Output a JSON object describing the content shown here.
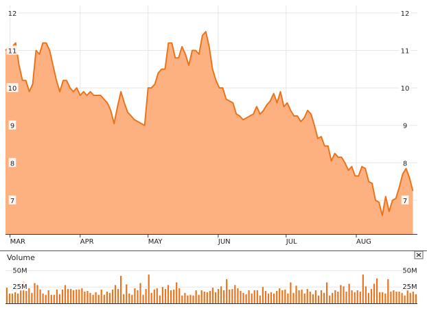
{
  "colors": {
    "area_fill": "#fdb180",
    "line": "#e8741e",
    "volume_bar": "#e8741e",
    "grid": "#e6e6e6",
    "axis": "#333333"
  },
  "volume_panel": {
    "title": "Volume",
    "close_icon": "close-x-icon",
    "tick_labels": [
      "50M",
      "25M"
    ]
  },
  "chart_data": [
    {
      "type": "area",
      "months": [
        {
          "label": "MAR",
          "t": 0
        },
        {
          "label": "APR",
          "t": 31
        },
        {
          "label": "MAY",
          "t": 61
        },
        {
          "label": "JUN",
          "t": 92
        },
        {
          "label": "JUL",
          "t": 122
        },
        {
          "label": "AUG",
          "t": 153
        }
      ],
      "xlim": [
        -2,
        180
      ],
      "ylim": [
        6.1,
        12.2
      ],
      "yticks": [
        7,
        8,
        9,
        10,
        11,
        12
      ],
      "grid": true,
      "series": [
        {
          "points": [
            [
              -2,
              11.0
            ],
            [
              -0.5,
              11.1
            ],
            [
              1,
              11.1
            ],
            [
              2.5,
              11.2
            ],
            [
              4,
              10.6
            ],
            [
              5.5,
              10.2
            ],
            [
              7,
              10.2
            ],
            [
              8.5,
              9.9
            ],
            [
              10,
              10.1
            ],
            [
              11.5,
              11.0
            ],
            [
              13,
              10.9
            ],
            [
              14.5,
              11.2
            ],
            [
              16,
              11.2
            ],
            [
              17.5,
              11.0
            ],
            [
              19,
              10.6
            ],
            [
              20.5,
              10.2
            ],
            [
              22,
              9.9
            ],
            [
              23.5,
              10.2
            ],
            [
              25,
              10.2
            ],
            [
              26.5,
              10.0
            ],
            [
              28,
              9.9
            ],
            [
              29.5,
              10.0
            ],
            [
              31,
              9.8
            ],
            [
              32.5,
              9.9
            ],
            [
              34,
              9.8
            ],
            [
              35.5,
              9.9
            ],
            [
              37,
              9.8
            ],
            [
              38.5,
              9.8
            ],
            [
              40,
              9.8
            ],
            [
              41.5,
              9.7
            ],
            [
              43,
              9.6
            ],
            [
              44.5,
              9.4
            ],
            [
              46,
              9.05
            ],
            [
              47.5,
              9.5
            ],
            [
              49,
              9.9
            ],
            [
              50.5,
              9.6
            ],
            [
              52,
              9.35
            ],
            [
              53.5,
              9.25
            ],
            [
              55,
              9.15
            ],
            [
              56.5,
              9.1
            ],
            [
              58,
              9.05
            ],
            [
              59.5,
              9.0
            ],
            [
              61,
              10.0
            ],
            [
              62.5,
              10.0
            ],
            [
              64,
              10.1
            ],
            [
              65.5,
              10.4
            ],
            [
              67,
              10.5
            ],
            [
              68.5,
              10.5
            ],
            [
              70,
              11.2
            ],
            [
              71.5,
              11.2
            ],
            [
              73,
              10.8
            ],
            [
              74.5,
              10.8
            ],
            [
              76,
              11.1
            ],
            [
              77.5,
              10.9
            ],
            [
              79,
              10.6
            ],
            [
              80.5,
              11.0
            ],
            [
              82,
              11.0
            ],
            [
              83.5,
              10.9
            ],
            [
              85,
              11.4
            ],
            [
              86.5,
              11.5
            ],
            [
              88,
              11.1
            ],
            [
              89.5,
              10.5
            ],
            [
              91,
              10.2
            ],
            [
              92.5,
              10.0
            ],
            [
              94,
              10.0
            ],
            [
              95.5,
              9.7
            ],
            [
              97,
              9.65
            ],
            [
              98.5,
              9.6
            ],
            [
              100,
              9.3
            ],
            [
              101.5,
              9.25
            ],
            [
              103,
              9.15
            ],
            [
              104.5,
              9.2
            ],
            [
              106,
              9.25
            ],
            [
              107.5,
              9.3
            ],
            [
              109,
              9.5
            ],
            [
              110.5,
              9.3
            ],
            [
              112,
              9.4
            ],
            [
              113.5,
              9.55
            ],
            [
              115,
              9.65
            ],
            [
              116.5,
              9.85
            ],
            [
              118,
              9.6
            ],
            [
              119.5,
              9.9
            ],
            [
              121,
              9.5
            ],
            [
              122.5,
              9.6
            ],
            [
              124,
              9.4
            ],
            [
              125.5,
              9.25
            ],
            [
              127,
              9.25
            ],
            [
              128.5,
              9.1
            ],
            [
              130,
              9.2
            ],
            [
              131.5,
              9.4
            ],
            [
              133,
              9.3
            ],
            [
              134.5,
              9.0
            ],
            [
              136,
              8.65
            ],
            [
              137.5,
              8.7
            ],
            [
              139,
              8.45
            ],
            [
              140.5,
              8.45
            ],
            [
              142,
              8.05
            ],
            [
              143.5,
              8.25
            ],
            [
              145,
              8.15
            ],
            [
              146.5,
              8.15
            ],
            [
              148,
              8.0
            ],
            [
              149.5,
              7.8
            ],
            [
              151,
              7.9
            ],
            [
              152.5,
              7.65
            ],
            [
              154,
              7.65
            ],
            [
              155.5,
              7.9
            ],
            [
              157,
              7.85
            ],
            [
              158.5,
              7.5
            ],
            [
              160,
              7.45
            ],
            [
              161.5,
              7.0
            ],
            [
              163,
              6.95
            ],
            [
              164.5,
              6.6
            ],
            [
              166,
              7.1
            ],
            [
              167.5,
              6.7
            ],
            [
              169,
              7.0
            ],
            [
              170.5,
              7.05
            ],
            [
              172,
              7.35
            ],
            [
              173.5,
              7.7
            ],
            [
              175,
              7.85
            ],
            [
              176.5,
              7.6
            ],
            [
              178,
              7.25
            ]
          ]
        }
      ]
    },
    {
      "type": "bar",
      "ylim": [
        0,
        62
      ],
      "yticks": [
        25,
        50
      ],
      "grid": true,
      "values": [
        24,
        15,
        15,
        17,
        15,
        23,
        33,
        19,
        23,
        16,
        31,
        28,
        21,
        15,
        13,
        20,
        13,
        13,
        21,
        14,
        21,
        28,
        22,
        22,
        20,
        21,
        21,
        23,
        18,
        19,
        16,
        13,
        17,
        13,
        21,
        13,
        18,
        16,
        21,
        28,
        22,
        42,
        14,
        29,
        15,
        13,
        23,
        20,
        31,
        13,
        22,
        44,
        16,
        21,
        23,
        12,
        25,
        22,
        28,
        20,
        21,
        32,
        23,
        12,
        16,
        12,
        13,
        12,
        20,
        13,
        20,
        18,
        17,
        19,
        24,
        17,
        22,
        26,
        20,
        37,
        21,
        22,
        28,
        23,
        19,
        16,
        14,
        20,
        15,
        20,
        20,
        12,
        25,
        19,
        15,
        17,
        15,
        19,
        23,
        20,
        21,
        15,
        32,
        16,
        27,
        20,
        21,
        15,
        22,
        18,
        14,
        20,
        12,
        20,
        16,
        32,
        12,
        16,
        20,
        18,
        28,
        26,
        18,
        30,
        20,
        17,
        20,
        18,
        44,
        26,
        16,
        22,
        30,
        38,
        17,
        17,
        15,
        37,
        18,
        20,
        18,
        18,
        16,
        12,
        24,
        16,
        18,
        14
      ]
    }
  ]
}
